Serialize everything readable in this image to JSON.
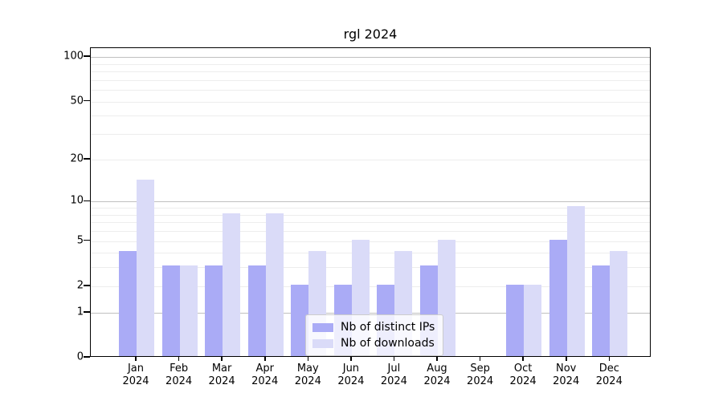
{
  "chart_data": {
    "type": "bar",
    "title": "rgl 2024",
    "xlabel": "",
    "ylabel": "",
    "year_label": "2024",
    "categories": [
      "Jan",
      "Feb",
      "Mar",
      "Apr",
      "May",
      "Jun",
      "Jul",
      "Aug",
      "Sep",
      "Oct",
      "Nov",
      "Dec"
    ],
    "series": [
      {
        "name": "Nb of distinct IPs",
        "color": "#aaabf6",
        "values": [
          4,
          3,
          3,
          3,
          2,
          2,
          2,
          3,
          0,
          2,
          5,
          3
        ]
      },
      {
        "name": "Nb of downloads",
        "color": "#dadbf8",
        "values": [
          14,
          3,
          8,
          8,
          4,
          5,
          4,
          5,
          0,
          2,
          9,
          4
        ]
      }
    ],
    "y_ticks": [
      0,
      1,
      2,
      5,
      10,
      20,
      50,
      100
    ],
    "y_major_gridlines": [
      1,
      10,
      100
    ],
    "y_minor_gridlines": [
      2,
      3,
      4,
      5,
      6,
      7,
      8,
      9,
      20,
      30,
      40,
      50,
      60,
      70,
      80,
      90
    ],
    "scale": "log10(value+1)",
    "ylim": [
      0,
      100
    ],
    "grid": true,
    "legend_position": "bottom-center"
  },
  "colors": {
    "background": "#ffffff",
    "frame": "#000000",
    "major_grid": "#c0c0c0",
    "minor_grid": "#ededed",
    "text": "#000000"
  }
}
